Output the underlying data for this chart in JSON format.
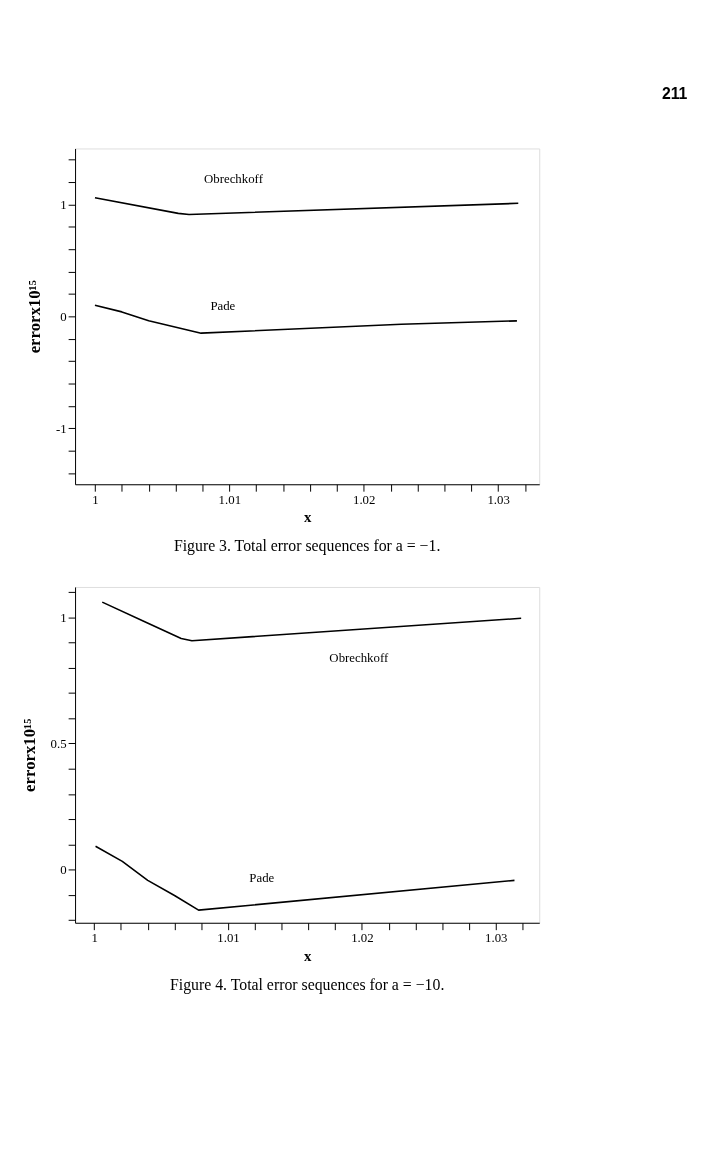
{
  "chart_data": [
    {
      "type": "line",
      "title": "Figure 3. Total error sequences for a = −1.",
      "xlabel": "x",
      "ylabel": "errorx10¹⁵",
      "grid": false,
      "marker": "none",
      "line_style": "solid",
      "xlim": [
        0.99852,
        1.03306
      ],
      "ylim": [
        -1.5,
        1.5
      ],
      "xticks": [
        1,
        {
          "value": 1.002,
          "label": null
        },
        {
          "value": 1.004,
          "label": null
        },
        {
          "value": 1.006,
          "label": null
        },
        {
          "value": 1.008,
          "label": null
        },
        1.01,
        {
          "value": 1.012,
          "label": null
        },
        {
          "value": 1.014,
          "label": null
        },
        {
          "value": 1.016,
          "label": null
        },
        {
          "value": 1.018,
          "label": null
        },
        1.02,
        {
          "value": 1.022,
          "label": null
        },
        {
          "value": 1.024,
          "label": null
        },
        {
          "value": 1.026,
          "label": null
        },
        {
          "value": 1.028,
          "label": null
        },
        1.03,
        {
          "value": 1.032,
          "label": null
        }
      ],
      "yticks": [
        {
          "value": -1.4,
          "label": null
        },
        {
          "value": -1.2,
          "label": null
        },
        -1,
        {
          "value": -0.8,
          "label": null
        },
        {
          "value": -0.6,
          "label": null
        },
        {
          "value": -0.4,
          "label": null
        },
        {
          "value": -0.2,
          "label": null
        },
        0,
        {
          "value": 0.2,
          "label": null
        },
        {
          "value": 0.4,
          "label": null
        },
        {
          "value": 0.6,
          "label": null
        },
        {
          "value": 0.8,
          "label": null
        },
        1,
        {
          "value": 1.2,
          "label": null
        },
        {
          "value": 1.4,
          "label": null
        }
      ],
      "series": [
        {
          "name": "Obrechkoff",
          "color": "#000000",
          "x": [
            1.0,
            1.0062,
            1.007,
            1.0315
          ],
          "values": [
            1.06,
            0.92,
            0.91,
            1.01
          ]
        },
        {
          "name": "Pade",
          "color": "#000000",
          "x": [
            1.0,
            1.002,
            1.004,
            1.0079,
            1.0228,
            1.0314
          ],
          "values": [
            0.1,
            0.04,
            -0.04,
            -0.15,
            -0.07,
            -0.04
          ]
        }
      ],
      "annotations": [
        "211"
      ]
    },
    {
      "type": "line",
      "title": "Figure 4. Total error sequences for a = −10.",
      "xlabel": "x",
      "ylabel": "errorx10¹⁵",
      "grid": false,
      "marker": "none",
      "line_style": "solid",
      "xlim": [
        0.99857,
        1.03325
      ],
      "ylim": [
        -0.21,
        1.12
      ],
      "xticks": [
        1,
        {
          "value": 1.002,
          "label": null
        },
        {
          "value": 1.004,
          "label": null
        },
        {
          "value": 1.006,
          "label": null
        },
        {
          "value": 1.008,
          "label": null
        },
        1.01,
        {
          "value": 1.012,
          "label": null
        },
        {
          "value": 1.014,
          "label": null
        },
        {
          "value": 1.016,
          "label": null
        },
        {
          "value": 1.018,
          "label": null
        },
        1.02,
        {
          "value": 1.022,
          "label": null
        },
        {
          "value": 1.024,
          "label": null
        },
        {
          "value": 1.026,
          "label": null
        },
        {
          "value": 1.028,
          "label": null
        },
        1.03,
        {
          "value": 1.032,
          "label": null
        }
      ],
      "yticks": [
        {
          "value": -0.2,
          "label": null
        },
        {
          "value": -0.1,
          "label": null
        },
        0,
        {
          "value": 0.1,
          "label": null
        },
        {
          "value": 0.2,
          "label": null
        },
        {
          "value": 0.3,
          "label": null
        },
        {
          "value": 0.4,
          "label": null
        },
        0.5,
        {
          "value": 0.6,
          "label": null
        },
        {
          "value": 0.7,
          "label": null
        },
        {
          "value": 0.8,
          "label": null
        },
        {
          "value": 0.9,
          "label": null
        },
        1,
        {
          "value": 1.1,
          "label": null
        }
      ],
      "series": [
        {
          "name": "Obrechkoff",
          "color": "#000000",
          "x": [
            1.0006,
            1.0039,
            1.0065,
            1.0073,
            1.0319
          ],
          "values": [
            1.06,
            0.979,
            0.916,
            0.907,
            0.996
          ]
        },
        {
          "name": "Pade",
          "color": "#000000",
          "x": [
            1.0001,
            1.0021,
            1.004,
            1.006,
            1.0078,
            1.0314
          ],
          "values": [
            0.093,
            0.033,
            -0.042,
            -0.102,
            -0.16,
            -0.042
          ]
        }
      ]
    }
  ]
}
